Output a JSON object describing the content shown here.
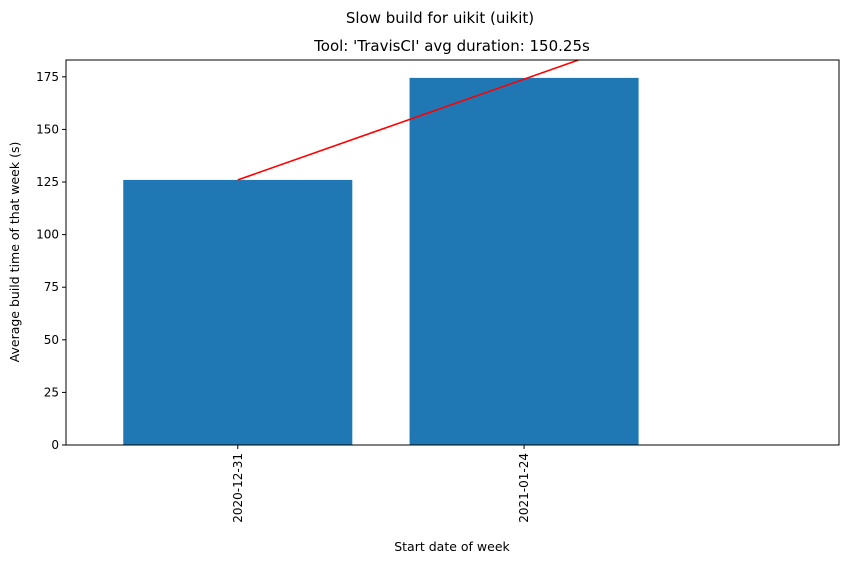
{
  "chart_data": {
    "type": "bar",
    "suptitle": "Slow build for uikit (uikit)",
    "title": "Tool: 'TravisCI' avg duration: 150.25s",
    "xlabel": "Start date of week",
    "ylabel": "Average build time of that week (s)",
    "categories": [
      "2020-12-31",
      "2021-01-24"
    ],
    "values": [
      126,
      174.5
    ],
    "ylim": [
      0,
      183
    ],
    "yticks": [
      0,
      25,
      50,
      75,
      100,
      125,
      150,
      175
    ],
    "xlim": [
      -0.6,
      2.1
    ],
    "bar_width": 0.8,
    "bar_color": "#1f77b4",
    "trend_line": {
      "color": "#ff0000",
      "points": [
        [
          0,
          126
        ],
        [
          1.19,
          183
        ]
      ]
    },
    "grid": false,
    "legend": "none"
  }
}
